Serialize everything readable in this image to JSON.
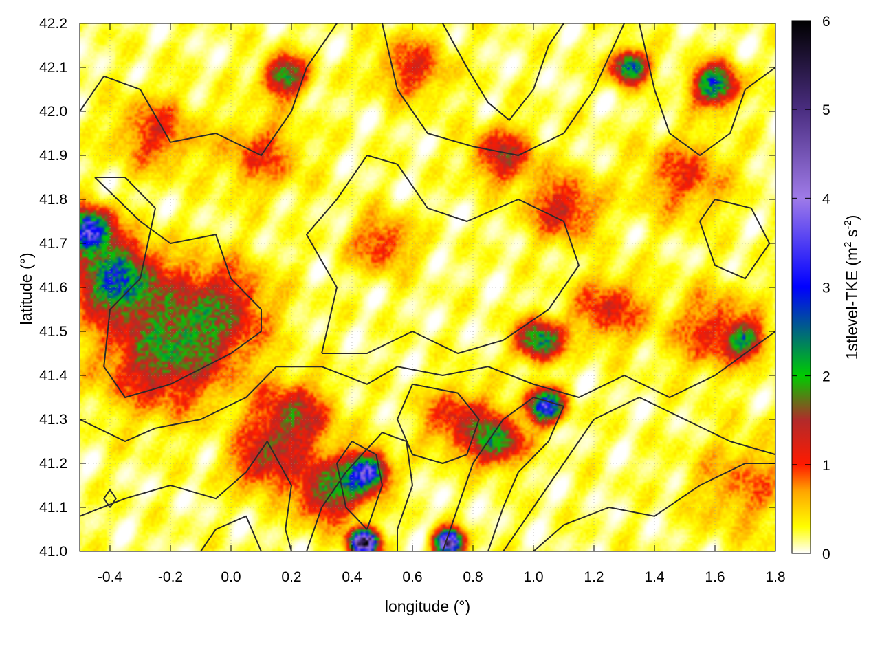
{
  "chart_data": {
    "type": "heatmap",
    "xlabel": "longitude (°)",
    "ylabel": "latitude (°)",
    "colorbar_label": "1stlevel-TKE (m² s⁻²)",
    "colorbar_label_base": "1stlevel-TKE (m",
    "colorbar_label_sup1": "2",
    "colorbar_label_mid": " s",
    "colorbar_label_sup2": "-2",
    "colorbar_label_end": ")",
    "xlim": [
      -0.5,
      1.8
    ],
    "ylim": [
      41.0,
      42.2
    ],
    "x_ticks": [
      "-0.4",
      "-0.2",
      "0.0",
      "0.2",
      "0.4",
      "0.6",
      "0.8",
      "1.0",
      "1.2",
      "1.4",
      "1.6",
      "1.8"
    ],
    "x_tick_values": [
      -0.4,
      -0.2,
      0.0,
      0.2,
      0.4,
      0.6,
      0.8,
      1.0,
      1.2,
      1.4,
      1.6,
      1.8
    ],
    "y_ticks": [
      "41.0",
      "41.1",
      "41.2",
      "41.3",
      "41.4",
      "41.5",
      "41.6",
      "41.7",
      "41.8",
      "41.9",
      "42.0",
      "42.1",
      "42.2"
    ],
    "y_tick_values": [
      41.0,
      41.1,
      41.2,
      41.3,
      41.4,
      41.5,
      41.6,
      41.7,
      41.8,
      41.9,
      42.0,
      42.1,
      42.2
    ],
    "colorbar_ticks": [
      "0",
      "1",
      "2",
      "3",
      "4",
      "5",
      "6"
    ],
    "colorbar_range": [
      0,
      6
    ],
    "grid": true,
    "colormap": [
      {
        "v": 0.0,
        "color": "#ffffff"
      },
      {
        "v": 0.3,
        "color": "#ffff00"
      },
      {
        "v": 0.7,
        "color": "#ffa500"
      },
      {
        "v": 1.0,
        "color": "#ff1a00"
      },
      {
        "v": 1.5,
        "color": "#b22a2a"
      },
      {
        "v": 2.0,
        "color": "#00cc00"
      },
      {
        "v": 3.0,
        "color": "#0000ff"
      },
      {
        "v": 4.0,
        "color": "#9f7be8"
      },
      {
        "v": 5.0,
        "color": "#4a2d80"
      },
      {
        "v": 6.0,
        "color": "#000000"
      }
    ],
    "hotspots": [
      {
        "lon": -0.38,
        "lat": 41.62,
        "tke": 2.4,
        "spread": 0.09
      },
      {
        "lon": -0.47,
        "lat": 41.73,
        "tke": 3.4,
        "spread": 0.05
      },
      {
        "lon": -0.22,
        "lat": 41.45,
        "tke": 1.5,
        "spread": 0.14
      },
      {
        "lon": -0.05,
        "lat": 41.55,
        "tke": 1.2,
        "spread": 0.12
      },
      {
        "lon": 0.2,
        "lat": 41.3,
        "tke": 1.4,
        "spread": 0.09
      },
      {
        "lon": 0.33,
        "lat": 41.14,
        "tke": 1.7,
        "spread": 0.08
      },
      {
        "lon": 0.45,
        "lat": 41.18,
        "tke": 3.0,
        "spread": 0.045
      },
      {
        "lon": 0.44,
        "lat": 41.02,
        "tke": 5.5,
        "spread": 0.03
      },
      {
        "lon": 0.72,
        "lat": 41.02,
        "tke": 4.8,
        "spread": 0.03
      },
      {
        "lon": 0.88,
        "lat": 41.25,
        "tke": 1.8,
        "spread": 0.06
      },
      {
        "lon": 1.04,
        "lat": 41.33,
        "tke": 3.2,
        "spread": 0.04
      },
      {
        "lon": 1.02,
        "lat": 41.48,
        "tke": 2.2,
        "spread": 0.05
      },
      {
        "lon": 1.25,
        "lat": 41.55,
        "tke": 1.0,
        "spread": 0.08
      },
      {
        "lon": 0.5,
        "lat": 41.7,
        "tke": 0.9,
        "spread": 0.07
      },
      {
        "lon": 1.1,
        "lat": 41.78,
        "tke": 1.1,
        "spread": 0.08
      },
      {
        "lon": 0.9,
        "lat": 41.9,
        "tke": 1.2,
        "spread": 0.07
      },
      {
        "lon": 1.32,
        "lat": 42.1,
        "tke": 2.5,
        "spread": 0.04
      },
      {
        "lon": 1.6,
        "lat": 42.06,
        "tke": 2.4,
        "spread": 0.05
      },
      {
        "lon": 0.18,
        "lat": 42.08,
        "tke": 1.8,
        "spread": 0.05
      },
      {
        "lon": -0.25,
        "lat": 41.95,
        "tke": 0.9,
        "spread": 0.09
      },
      {
        "lon": 0.1,
        "lat": 41.9,
        "tke": 0.8,
        "spread": 0.09
      },
      {
        "lon": 1.6,
        "lat": 41.5,
        "tke": 0.9,
        "spread": 0.1
      },
      {
        "lon": 1.7,
        "lat": 41.48,
        "tke": 1.6,
        "spread": 0.04
      },
      {
        "lon": 1.5,
        "lat": 41.85,
        "tke": 0.8,
        "spread": 0.1
      },
      {
        "lon": 0.75,
        "lat": 41.3,
        "tke": 1.0,
        "spread": 0.08
      },
      {
        "lon": 0.1,
        "lat": 41.2,
        "tke": 1.1,
        "spread": 0.07
      },
      {
        "lon": 0.6,
        "lat": 42.1,
        "tke": 0.9,
        "spread": 0.08
      },
      {
        "lon": 1.7,
        "lat": 41.15,
        "tke": 0.6,
        "spread": 0.12
      }
    ],
    "contours": [
      [
        [
          -0.5,
          42.0
        ],
        [
          -0.42,
          42.08
        ],
        [
          -0.3,
          42.05
        ],
        [
          -0.2,
          41.93
        ],
        [
          -0.05,
          41.95
        ],
        [
          0.1,
          41.9
        ],
        [
          0.2,
          42.0
        ],
        [
          0.25,
          42.1
        ],
        [
          0.35,
          42.2
        ]
      ],
      [
        [
          -0.45,
          41.85
        ],
        [
          -0.3,
          41.75
        ],
        [
          -0.2,
          41.7
        ],
        [
          -0.05,
          41.72
        ],
        [
          0.0,
          41.62
        ],
        [
          0.1,
          41.55
        ],
        [
          0.1,
          41.5
        ],
        [
          0.0,
          41.45
        ],
        [
          -0.2,
          41.38
        ],
        [
          -0.35,
          41.35
        ],
        [
          -0.42,
          41.42
        ],
        [
          -0.4,
          41.55
        ],
        [
          -0.3,
          41.62
        ],
        [
          -0.25,
          41.78
        ],
        [
          -0.35,
          41.85
        ],
        [
          -0.45,
          41.85
        ]
      ],
      [
        [
          -0.5,
          41.3
        ],
        [
          -0.35,
          41.25
        ],
        [
          -0.25,
          41.28
        ],
        [
          -0.1,
          41.3
        ],
        [
          0.05,
          41.35
        ],
        [
          0.15,
          41.42
        ],
        [
          0.3,
          41.42
        ],
        [
          0.45,
          41.38
        ],
        [
          0.55,
          41.42
        ],
        [
          0.7,
          41.4
        ],
        [
          0.85,
          41.42
        ],
        [
          1.0,
          41.38
        ],
        [
          1.15,
          41.35
        ],
        [
          1.3,
          41.4
        ],
        [
          1.45,
          41.35
        ],
        [
          1.6,
          41.4
        ],
        [
          1.8,
          41.5
        ]
      ],
      [
        [
          0.3,
          41.45
        ],
        [
          0.35,
          41.6
        ],
        [
          0.25,
          41.72
        ],
        [
          0.35,
          41.8
        ],
        [
          0.45,
          41.9
        ],
        [
          0.55,
          41.88
        ],
        [
          0.65,
          41.78
        ],
        [
          0.78,
          41.75
        ],
        [
          0.95,
          41.8
        ],
        [
          1.1,
          41.75
        ],
        [
          1.15,
          41.65
        ],
        [
          1.05,
          41.55
        ],
        [
          0.9,
          41.48
        ],
        [
          0.75,
          41.45
        ],
        [
          0.6,
          41.5
        ],
        [
          0.45,
          41.45
        ],
        [
          0.3,
          41.45
        ]
      ],
      [
        [
          0.45,
          41.05
        ],
        [
          0.5,
          41.15
        ],
        [
          0.48,
          41.22
        ],
        [
          0.4,
          41.25
        ],
        [
          0.35,
          41.2
        ],
        [
          0.38,
          41.1
        ],
        [
          0.45,
          41.05
        ]
      ],
      [
        [
          0.25,
          41.0
        ],
        [
          0.3,
          41.1
        ],
        [
          0.38,
          41.18
        ],
        [
          0.5,
          41.27
        ],
        [
          0.58,
          41.25
        ],
        [
          0.6,
          41.15
        ],
        [
          0.55,
          41.05
        ],
        [
          0.55,
          41.0
        ]
      ],
      [
        [
          0.7,
          41.0
        ],
        [
          0.75,
          41.1
        ],
        [
          0.8,
          41.2
        ],
        [
          0.9,
          41.3
        ],
        [
          1.0,
          41.35
        ],
        [
          1.1,
          41.33
        ],
        [
          1.05,
          41.25
        ],
        [
          0.95,
          41.18
        ],
        [
          0.9,
          41.1
        ],
        [
          0.85,
          41.0
        ]
      ],
      [
        [
          0.9,
          41.0
        ],
        [
          1.0,
          41.1
        ],
        [
          1.1,
          41.2
        ],
        [
          1.2,
          41.3
        ],
        [
          1.35,
          41.35
        ],
        [
          1.5,
          41.3
        ],
        [
          1.65,
          41.25
        ],
        [
          1.8,
          41.22
        ]
      ],
      [
        [
          1.0,
          41.0
        ],
        [
          1.1,
          41.06
        ],
        [
          1.25,
          41.1
        ],
        [
          1.4,
          41.08
        ],
        [
          1.55,
          41.15
        ],
        [
          1.7,
          41.2
        ],
        [
          1.8,
          41.2
        ]
      ],
      [
        [
          0.7,
          42.2
        ],
        [
          0.78,
          42.1
        ],
        [
          0.85,
          42.02
        ],
        [
          0.92,
          41.98
        ],
        [
          1.0,
          42.05
        ],
        [
          1.05,
          42.15
        ],
        [
          1.1,
          42.2
        ]
      ],
      [
        [
          0.5,
          42.2
        ],
        [
          0.55,
          42.05
        ],
        [
          0.65,
          41.95
        ],
        [
          0.8,
          41.92
        ],
        [
          0.95,
          41.9
        ],
        [
          1.1,
          41.95
        ],
        [
          1.2,
          42.05
        ],
        [
          1.3,
          42.2
        ]
      ],
      [
        [
          1.35,
          42.2
        ],
        [
          1.4,
          42.05
        ],
        [
          1.45,
          41.95
        ],
        [
          1.55,
          41.9
        ],
        [
          1.65,
          41.95
        ],
        [
          1.7,
          42.05
        ],
        [
          1.8,
          42.1
        ]
      ],
      [
        [
          1.55,
          41.75
        ],
        [
          1.6,
          41.65
        ],
        [
          1.7,
          41.62
        ],
        [
          1.78,
          41.7
        ],
        [
          1.72,
          41.78
        ],
        [
          1.6,
          41.8
        ],
        [
          1.55,
          41.75
        ]
      ],
      [
        [
          -0.5,
          41.08
        ],
        [
          -0.35,
          41.12
        ],
        [
          -0.2,
          41.15
        ],
        [
          -0.05,
          41.12
        ],
        [
          0.05,
          41.18
        ],
        [
          0.12,
          41.25
        ],
        [
          0.2,
          41.15
        ],
        [
          0.18,
          41.05
        ],
        [
          0.2,
          41.0
        ]
      ],
      [
        [
          -0.1,
          41.0
        ],
        [
          -0.05,
          41.05
        ],
        [
          0.05,
          41.08
        ],
        [
          0.1,
          41.0
        ]
      ],
      [
        [
          -0.4,
          41.1
        ],
        [
          -0.42,
          41.12
        ],
        [
          -0.4,
          41.14
        ],
        [
          -0.38,
          41.12
        ],
        [
          -0.4,
          41.1
        ]
      ],
      [
        [
          0.55,
          41.3
        ],
        [
          0.6,
          41.38
        ],
        [
          0.75,
          41.36
        ],
        [
          0.82,
          41.3
        ],
        [
          0.78,
          41.22
        ],
        [
          0.7,
          41.2
        ],
        [
          0.6,
          41.22
        ],
        [
          0.55,
          41.3
        ]
      ]
    ]
  }
}
